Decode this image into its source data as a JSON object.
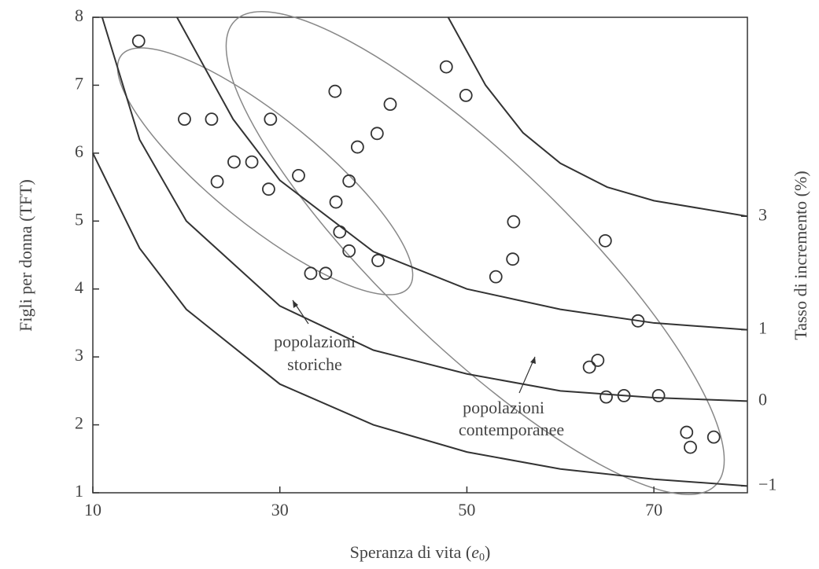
{
  "chart_data": {
    "type": "scatter",
    "x_label": {
      "text": "Speranza di vita (",
      "var": "e",
      "sub": "0",
      "end": ")"
    },
    "y_label": "Figli per donna (TFT)",
    "y2_label": "Tasso di incremento (%)",
    "xlim": [
      10,
      80
    ],
    "xticks": [
      10,
      30,
      50,
      70
    ],
    "ylim": [
      1,
      8
    ],
    "yticks": [
      1,
      2,
      3,
      4,
      5,
      6,
      7,
      8
    ],
    "color": "#333333",
    "x": [
      14.9,
      19.8,
      22.7,
      23.3,
      25.1,
      27.0,
      29.0,
      28.8,
      32.0,
      35.9,
      37.4,
      36.0,
      36.4,
      37.4,
      33.3,
      34.9,
      40.5,
      38.3,
      40.4,
      41.8,
      47.8,
      49.9,
      55.0,
      53.1,
      54.9,
      64.8,
      68.3,
      63.1,
      64.0,
      64.9,
      66.8,
      70.5,
      73.5,
      73.9,
      76.4
    ],
    "values": [
      7.65,
      6.5,
      6.5,
      5.58,
      5.87,
      5.87,
      6.5,
      5.47,
      5.67,
      6.91,
      5.59,
      5.28,
      4.84,
      4.56,
      4.23,
      4.23,
      4.42,
      6.09,
      6.29,
      6.72,
      7.27,
      6.85,
      4.99,
      4.18,
      4.44,
      4.71,
      3.53,
      2.85,
      2.95,
      2.41,
      2.43,
      2.43,
      1.89,
      1.67,
      1.82
    ],
    "curves": [
      {
        "name": "3",
        "color": "#333333",
        "x": [
          48,
          52,
          56,
          60,
          65,
          70,
          80
        ],
        "values": [
          8,
          7.0,
          6.3,
          5.85,
          5.5,
          5.3,
          5.07
        ]
      },
      {
        "name": "1",
        "color": "#333333",
        "x": [
          19,
          25,
          30,
          40,
          50,
          60,
          70,
          80
        ],
        "values": [
          8,
          6.5,
          5.6,
          4.55,
          4.0,
          3.7,
          3.5,
          3.4
        ]
      },
      {
        "name": "0",
        "color": "#333333",
        "x": [
          11,
          15,
          20,
          30,
          40,
          50,
          60,
          70,
          80
        ],
        "values": [
          8,
          6.2,
          5.0,
          3.75,
          3.1,
          2.75,
          2.5,
          2.4,
          2.35
        ]
      },
      {
        "name": "−1",
        "color": "#333333",
        "x": [
          10,
          15,
          20,
          30,
          40,
          50,
          60,
          70,
          80
        ],
        "values": [
          6.0,
          4.6,
          3.7,
          2.6,
          2.0,
          1.6,
          1.35,
          1.2,
          1.1
        ]
      }
    ],
    "annotations": [
      [
        "popolazioni",
        "storiche"
      ],
      [
        "popolazioni",
        "contemporanee"
      ]
    ]
  }
}
